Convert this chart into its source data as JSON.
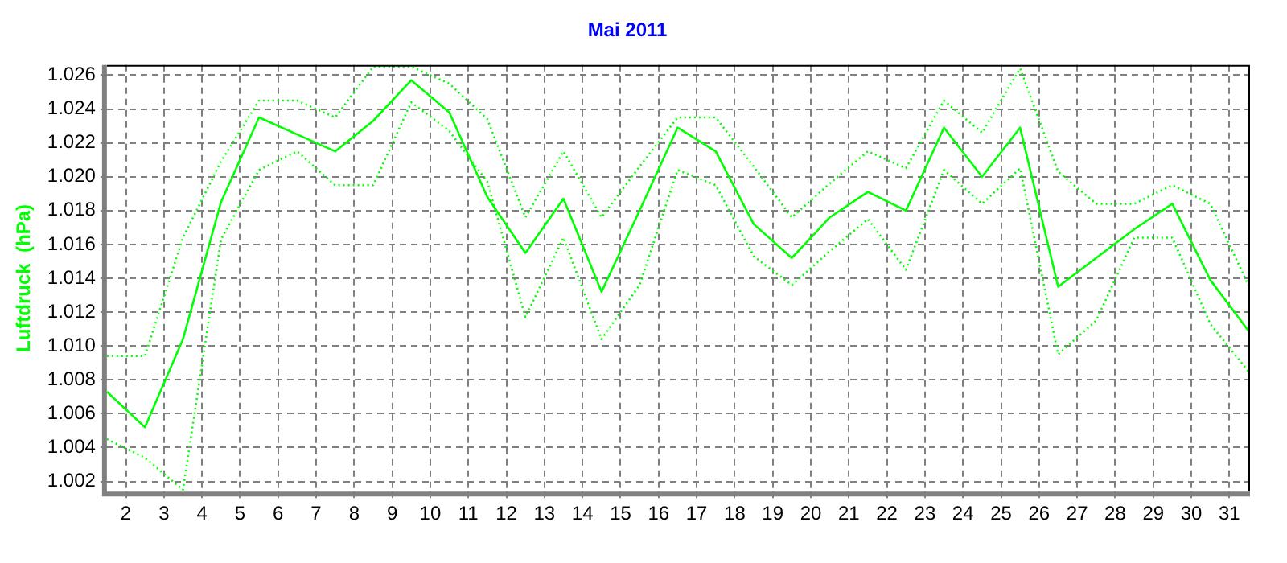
{
  "chart_data": {
    "type": "line",
    "title": "Mai 2011",
    "ylabel": "Luftdruck  (hPa)",
    "x": [
      1.5,
      2.5,
      3.5,
      4.5,
      5.5,
      6.5,
      7.5,
      8.5,
      9.5,
      10.5,
      11.5,
      12.5,
      13.5,
      14.5,
      15.5,
      16.5,
      17.5,
      18.5,
      19.5,
      20.5,
      21.5,
      22.5,
      23.5,
      24.5,
      25.5,
      26.5,
      27.5,
      28.5,
      29.5,
      30.5,
      31.5
    ],
    "series": [
      {
        "color": "#00ff00",
        "line_style": "dotted",
        "values": [
          1.0094,
          1.0094,
          1.0164,
          1.0209,
          1.0245,
          1.0245,
          1.0235,
          1.0265,
          1.0265,
          1.0255,
          1.0234,
          1.0176,
          1.0215,
          1.0176,
          1.0206,
          1.0235,
          1.0235,
          1.0206,
          1.0176,
          1.0196,
          1.0215,
          1.0205,
          1.0245,
          1.0226,
          1.0264,
          1.0203,
          1.0184,
          1.0184,
          1.0195,
          1.0184,
          1.0136
        ]
      },
      {
        "color": "#00ff00",
        "line_style": "solid",
        "values": [
          1.0073,
          1.0052,
          1.0104,
          1.0185,
          1.0235,
          1.0225,
          1.0215,
          1.0233,
          1.0257,
          1.0238,
          1.0188,
          1.0155,
          1.0187,
          1.0132,
          1.018,
          1.0229,
          1.0215,
          1.0172,
          1.0152,
          1.0176,
          1.0191,
          1.018,
          1.0229,
          1.02,
          1.0229,
          1.0135,
          1.0152,
          1.0169,
          1.0184,
          1.0139,
          1.0109
        ]
      },
      {
        "color": "#00ff00",
        "line_style": "dotted",
        "values": [
          1.0045,
          1.0034,
          1.0015,
          1.0163,
          1.0204,
          1.0215,
          1.0195,
          1.0195,
          1.0244,
          1.0227,
          1.0197,
          1.0117,
          1.0164,
          1.0104,
          1.0136,
          1.0204,
          1.0195,
          1.0153,
          1.0136,
          1.0156,
          1.0175,
          1.0145,
          1.0204,
          1.0184,
          1.0205,
          1.0095,
          1.0115,
          1.0164,
          1.0164,
          1.0113,
          1.0085
        ]
      }
    ],
    "xlim": [
      1.5,
      31.5
    ],
    "xticks": [
      2,
      3,
      4,
      5,
      6,
      7,
      8,
      9,
      10,
      11,
      12,
      13,
      14,
      15,
      16,
      17,
      18,
      19,
      20,
      21,
      22,
      23,
      24,
      25,
      26,
      27,
      28,
      29,
      30,
      31
    ],
    "ylim": [
      1.0014,
      1.0266
    ],
    "yticks": [
      1.002,
      1.004,
      1.006,
      1.008,
      {
        "value": 1.01,
        "label": "1.010"
      },
      1.012,
      1.014,
      1.016,
      1.018,
      {
        "value": 1.02,
        "label": "1.020"
      },
      1.022,
      1.024,
      1.026
    ],
    "grid": true,
    "legend": false,
    "marker": "none"
  }
}
